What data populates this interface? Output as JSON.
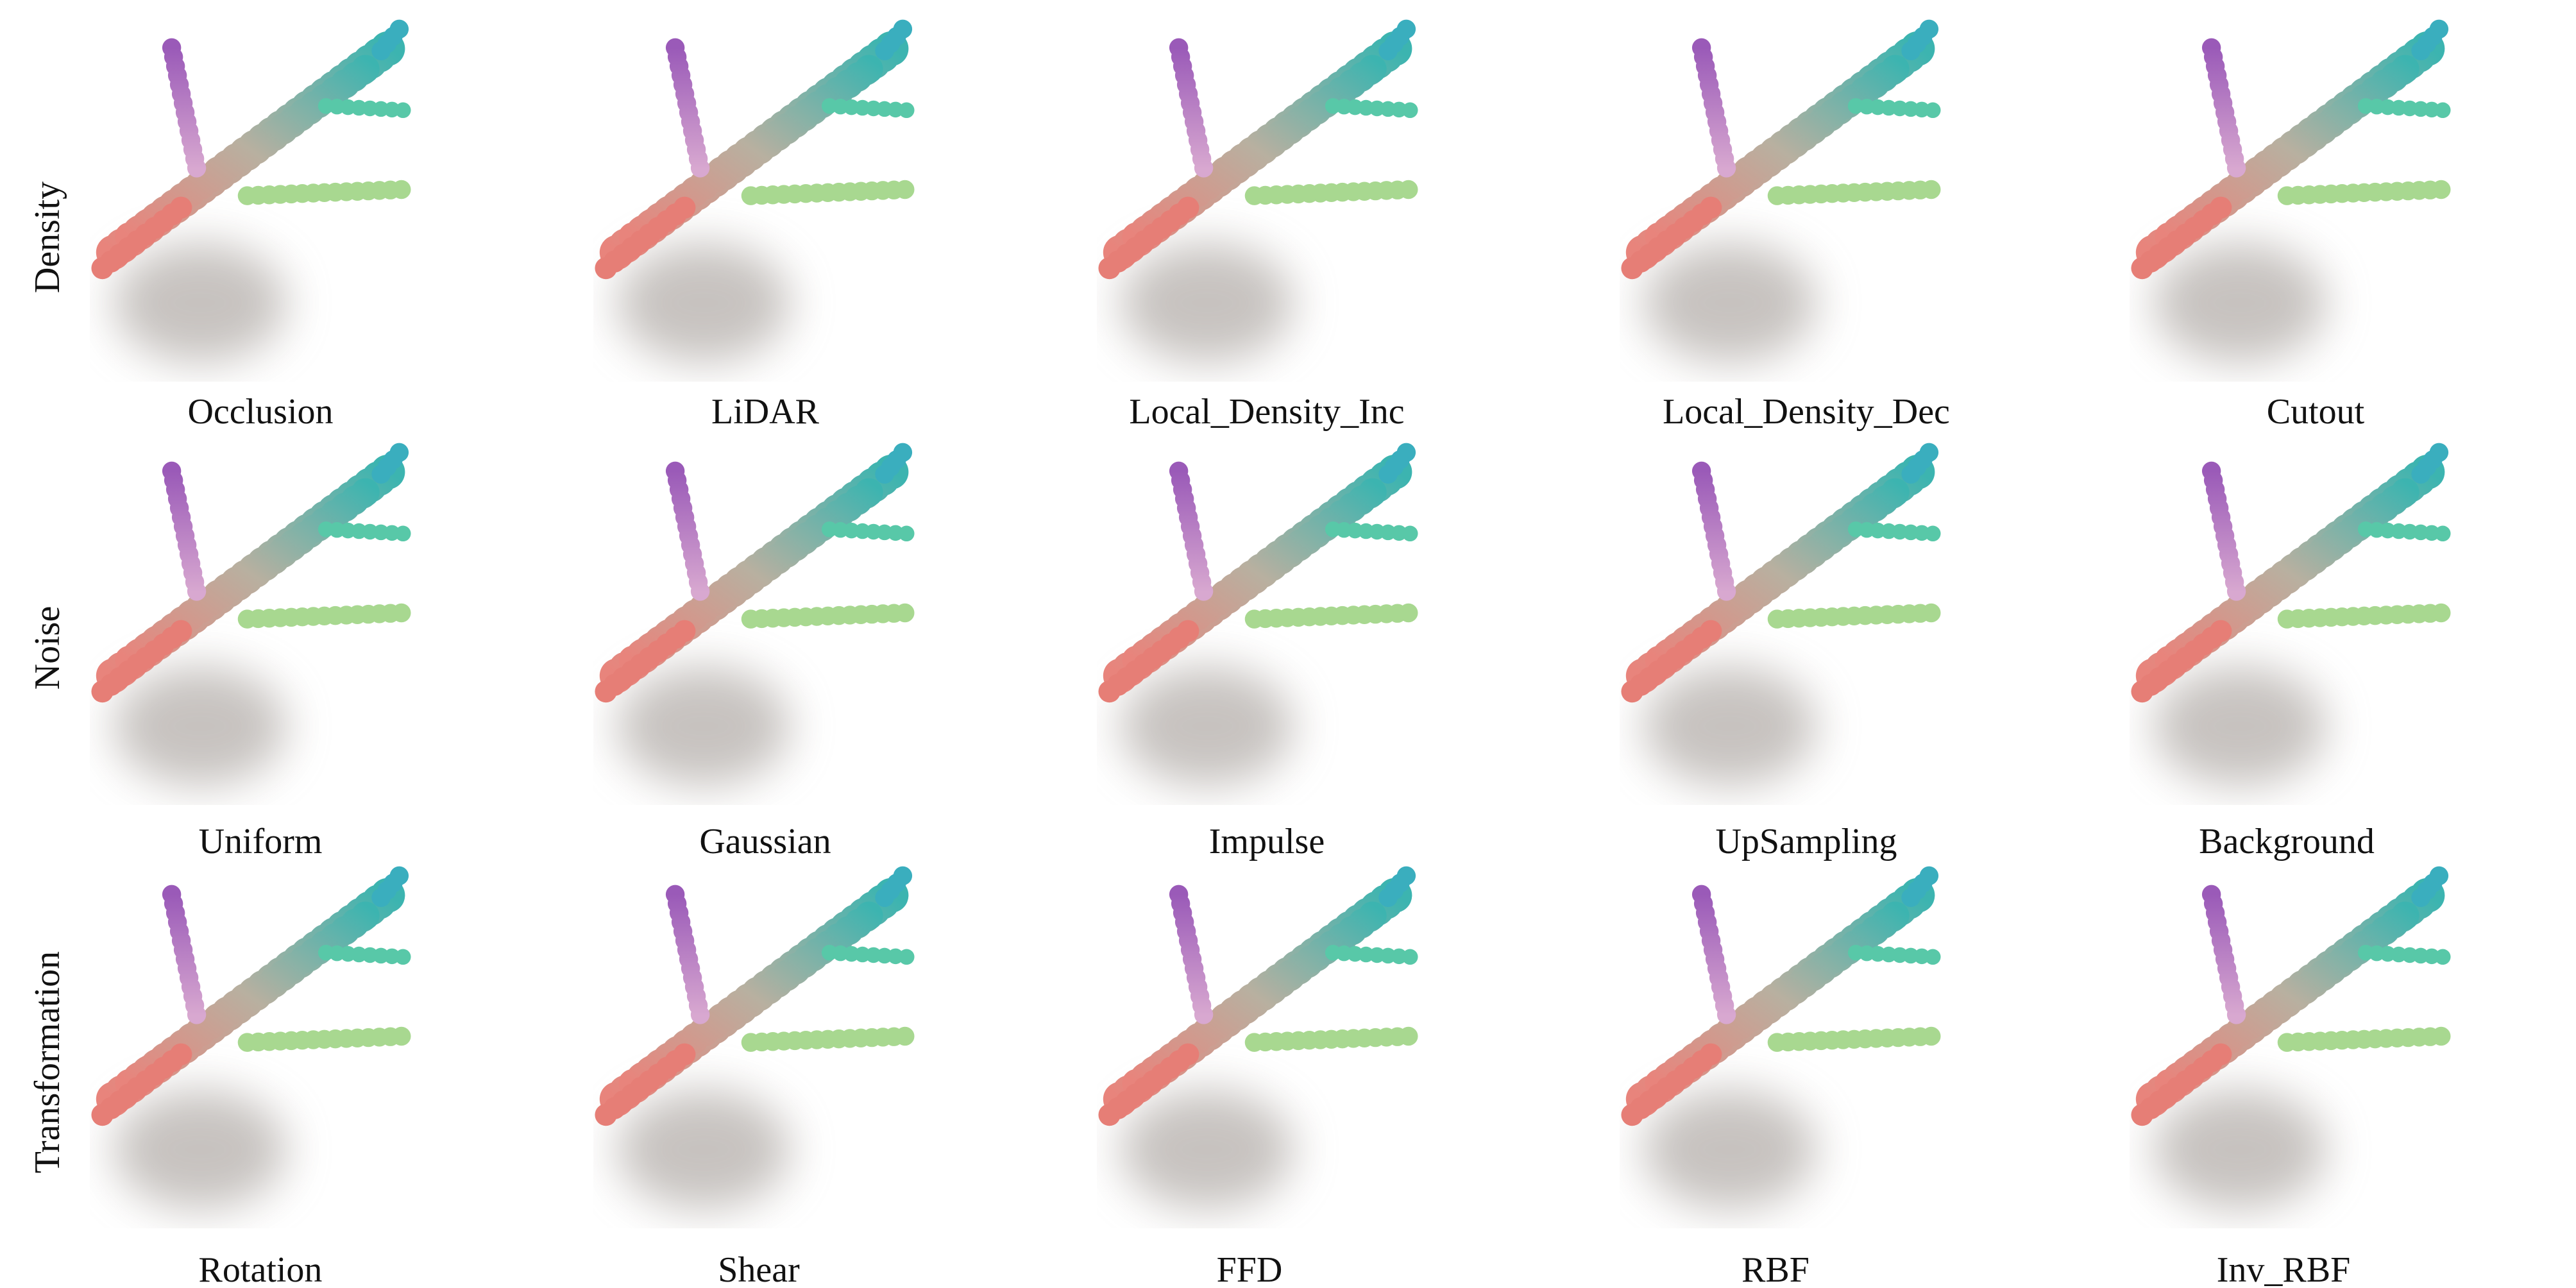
{
  "rows": [
    {
      "label": "Density",
      "panels": [
        "Occlusion",
        "LiDAR",
        "Local_Density_Inc",
        "Local_Density_Dec",
        "Cutout"
      ]
    },
    {
      "label": "Noise",
      "panels": [
        "Uniform",
        "Gaussian",
        "Impulse",
        "UpSampling",
        "Background"
      ]
    },
    {
      "label": "Transformation",
      "panels": [
        "Rotation",
        "Shear",
        "FFD",
        "RBF",
        "Inv_RBF"
      ]
    }
  ]
}
